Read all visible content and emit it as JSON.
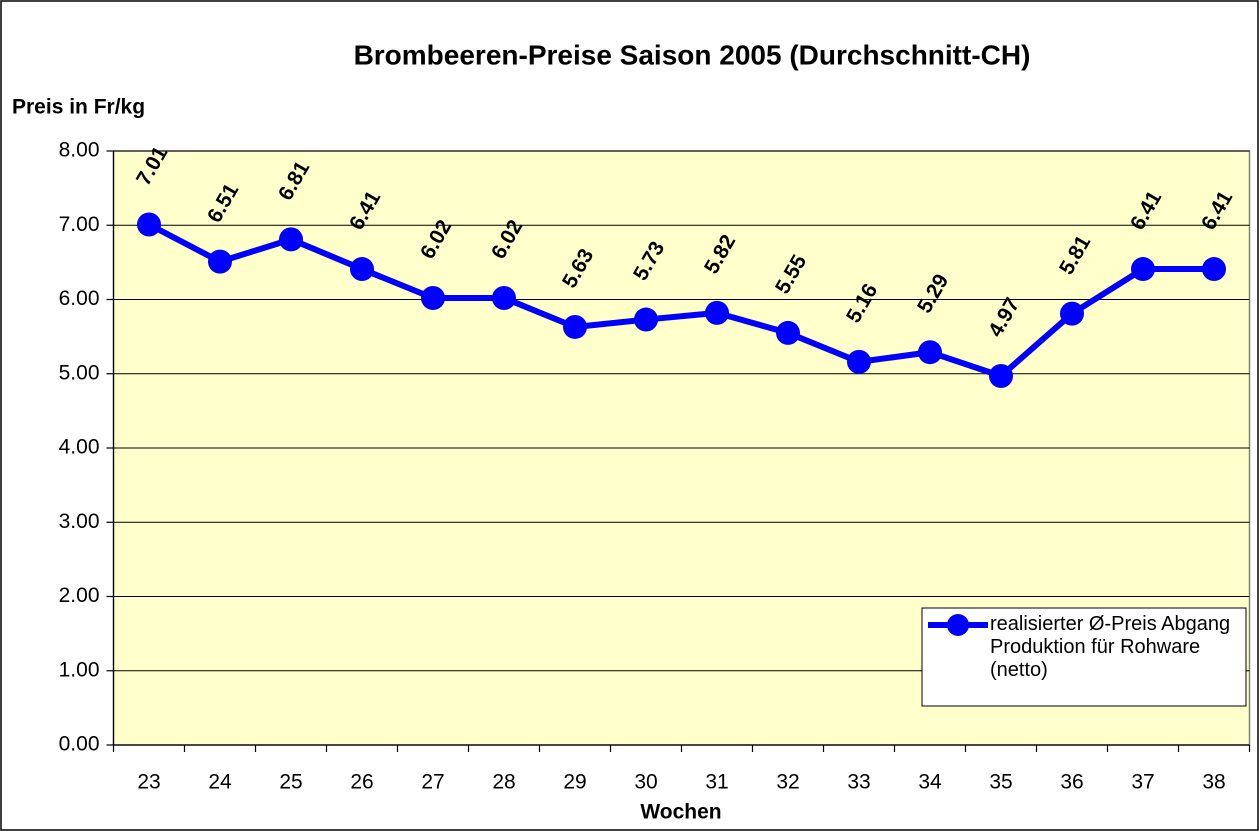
{
  "chart_data": {
    "type": "line",
    "title": "Brombeeren-Preise Saison 2005  (Durchschnitt-CH)",
    "y_label": "Preis in Fr/kg",
    "x_label": "Wochen",
    "categories": [
      "23",
      "24",
      "25",
      "26",
      "27",
      "28",
      "29",
      "30",
      "31",
      "32",
      "33",
      "34",
      "35",
      "36",
      "37",
      "38"
    ],
    "series": [
      {
        "name": "realisierter Ø-Preis Abgang Produktion für Rohware (netto)",
        "color": "#0000ff",
        "values": [
          7.01,
          6.51,
          6.81,
          6.41,
          6.02,
          6.02,
          5.63,
          5.73,
          5.82,
          5.55,
          5.16,
          5.29,
          4.97,
          5.81,
          6.41,
          6.41
        ]
      }
    ],
    "ylim": [
      0,
      8
    ],
    "yticks": [
      {
        "value": 0,
        "label": "0.00"
      },
      {
        "value": 1,
        "label": "1.00"
      },
      {
        "value": 2,
        "label": "2.00"
      },
      {
        "value": 3,
        "label": "3.00"
      },
      {
        "value": 4,
        "label": "4.00"
      },
      {
        "value": 5,
        "label": "5.00"
      },
      {
        "value": 6,
        "label": "6.00"
      },
      {
        "value": 7,
        "label": "7.00"
      },
      {
        "value": 8,
        "label": "8.00"
      }
    ],
    "grid": true,
    "legend": "lower right",
    "plot_background": "#ffffcc"
  }
}
